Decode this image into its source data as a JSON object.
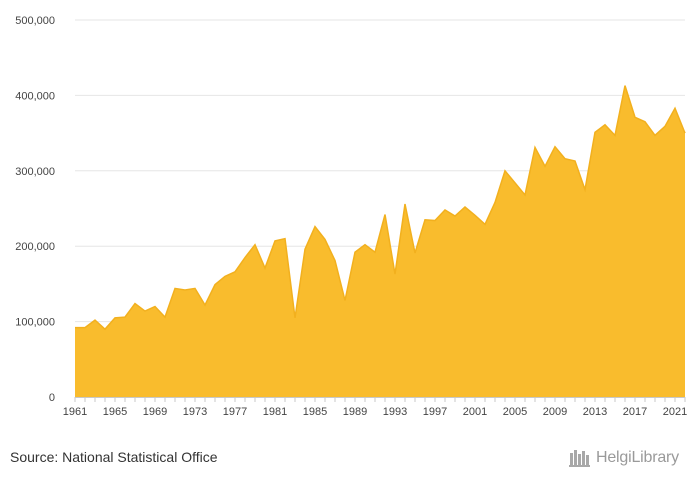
{
  "chart_data": {
    "type": "area",
    "x": [
      1961,
      1962,
      1963,
      1964,
      1965,
      1966,
      1967,
      1968,
      1969,
      1970,
      1971,
      1972,
      1973,
      1974,
      1975,
      1976,
      1977,
      1978,
      1979,
      1980,
      1981,
      1982,
      1983,
      1984,
      1985,
      1986,
      1987,
      1988,
      1989,
      1990,
      1991,
      1992,
      1993,
      1994,
      1995,
      1996,
      1997,
      1998,
      1999,
      2000,
      2001,
      2002,
      2003,
      2004,
      2005,
      2006,
      2007,
      2008,
      2009,
      2010,
      2011,
      2012,
      2013,
      2014,
      2015,
      2016,
      2017,
      2018,
      2019,
      2020,
      2021,
      2022
    ],
    "values": [
      92000,
      92000,
      102000,
      90000,
      105000,
      106000,
      124000,
      114000,
      120000,
      106000,
      144000,
      142000,
      144000,
      122000,
      149000,
      160000,
      166000,
      185000,
      202000,
      171000,
      207000,
      210000,
      105000,
      196000,
      226000,
      209000,
      181000,
      128000,
      192000,
      202000,
      192000,
      242000,
      163000,
      256000,
      191000,
      235000,
      234000,
      248000,
      240000,
      252000,
      241000,
      229000,
      258000,
      300000,
      284000,
      268000,
      331000,
      306000,
      332000,
      316000,
      313000,
      275000,
      351000,
      361000,
      347000,
      413000,
      371000,
      365000,
      347000,
      359000,
      383000,
      350000
    ],
    "x_tick_labels": [
      "1961",
      "1965",
      "1969",
      "1973",
      "1977",
      "1981",
      "1985",
      "1989",
      "1993",
      "1997",
      "2001",
      "2005",
      "2009",
      "2013",
      "2017",
      "2021"
    ],
    "y_tick_labels": [
      "0",
      "100,000",
      "200,000",
      "300,000",
      "400,000",
      "500,000"
    ],
    "ylim": [
      0,
      500000
    ],
    "grid": true,
    "fill_color": "#f9bc2d",
    "line_color": "#f2b01e"
  },
  "footer": {
    "source": "Source: National Statistical Office",
    "logo_text": "HelgiLibrary"
  }
}
